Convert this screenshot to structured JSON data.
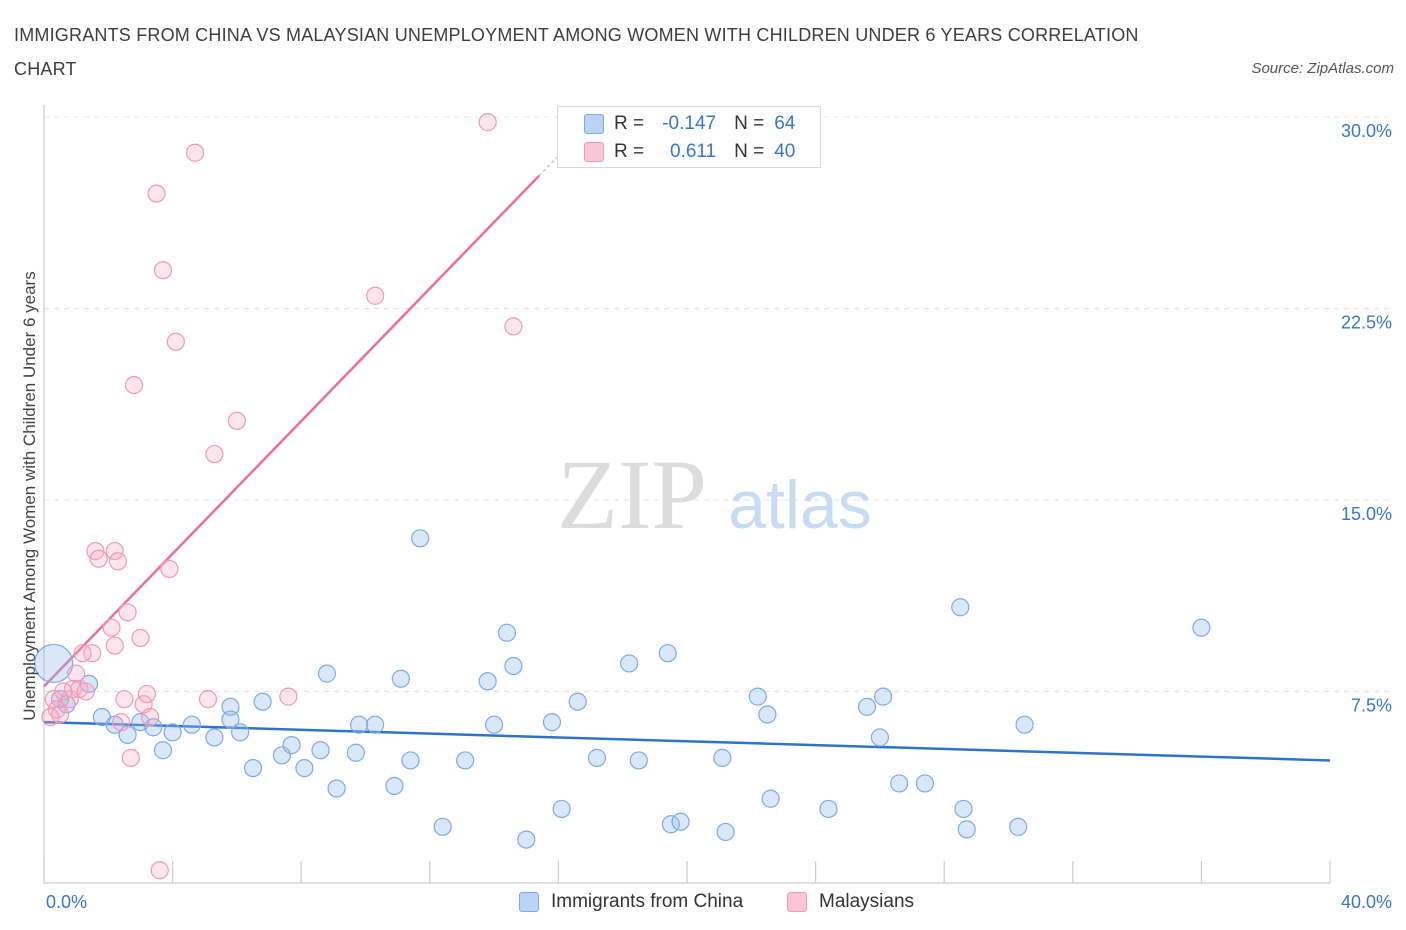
{
  "title": "IMMIGRANTS FROM CHINA VS MALAYSIAN UNEMPLOYMENT AMONG WOMEN WITH CHILDREN UNDER 6 YEARS CORRELATION CHART",
  "source": "Source: ZipAtlas.com",
  "watermark": {
    "zip": "ZIP",
    "atlas": "atlas"
  },
  "legend": {
    "china": {
      "r_label": "R =",
      "r_value": "-0.147",
      "n_label": "N =",
      "n_value": "64"
    },
    "malaysians": {
      "r_label": "R =",
      "r_value": "0.611",
      "n_label": "N =",
      "n_value": "40"
    }
  },
  "colors": {
    "china": "#6fa0e0",
    "china_line": "#2f74c9",
    "malaysians": "#ef8fae",
    "malaysians_line": "#e8709a",
    "axis_text": "#3b76c4"
  },
  "chart_data": {
    "type": "scatter",
    "xlabel": "",
    "ylabel": "Unemployment Among Women with Children Under 6 years",
    "xlim": [
      0,
      40
    ],
    "ylim": [
      0,
      30
    ],
    "x_tick_labels": [
      "0.0%",
      "40.0%"
    ],
    "y_ticks": [
      7.5,
      15.0,
      22.5,
      30.0
    ],
    "y_tick_labels": [
      "7.5%",
      "15.0%",
      "22.5%",
      "30.0%"
    ],
    "grid": true,
    "legend_position": "bottom-center",
    "series": [
      {
        "name": "Immigrants from China",
        "color": "#6fa0e0",
        "trend": {
          "x": [
            0,
            40
          ],
          "y": [
            6.3,
            4.8
          ]
        },
        "points": [
          [
            0.3,
            8.6
          ],
          [
            0.5,
            7.2
          ],
          [
            0.7,
            7.0
          ],
          [
            1.4,
            7.8
          ],
          [
            1.8,
            6.5
          ],
          [
            2.2,
            6.2
          ],
          [
            2.6,
            5.8
          ],
          [
            3.0,
            6.3
          ],
          [
            3.4,
            6.1
          ],
          [
            3.7,
            5.2
          ],
          [
            4.0,
            5.9
          ],
          [
            4.6,
            6.2
          ],
          [
            5.3,
            5.7
          ],
          [
            5.8,
            6.9
          ],
          [
            5.8,
            6.4
          ],
          [
            6.1,
            5.9
          ],
          [
            6.5,
            4.5
          ],
          [
            6.8,
            7.1
          ],
          [
            7.4,
            5.0
          ],
          [
            7.7,
            5.4
          ],
          [
            8.1,
            4.5
          ],
          [
            8.6,
            5.2
          ],
          [
            8.8,
            8.2
          ],
          [
            9.1,
            3.7
          ],
          [
            9.7,
            5.1
          ],
          [
            9.8,
            6.2
          ],
          [
            10.3,
            6.2
          ],
          [
            10.9,
            3.8
          ],
          [
            11.1,
            8.0
          ],
          [
            11.4,
            4.8
          ],
          [
            11.7,
            13.5
          ],
          [
            12.4,
            2.2
          ],
          [
            13.1,
            4.8
          ],
          [
            13.8,
            7.9
          ],
          [
            14.0,
            6.2
          ],
          [
            14.4,
            9.8
          ],
          [
            14.6,
            8.5
          ],
          [
            15.0,
            1.7
          ],
          [
            15.8,
            6.3
          ],
          [
            16.1,
            2.9
          ],
          [
            16.6,
            7.1
          ],
          [
            17.2,
            4.9
          ],
          [
            18.2,
            8.6
          ],
          [
            18.5,
            4.8
          ],
          [
            19.4,
            9.0
          ],
          [
            19.5,
            2.3
          ],
          [
            19.8,
            2.4
          ],
          [
            21.1,
            4.9
          ],
          [
            21.2,
            2.0
          ],
          [
            22.2,
            7.3
          ],
          [
            22.5,
            6.6
          ],
          [
            22.6,
            3.3
          ],
          [
            24.4,
            2.9
          ],
          [
            25.6,
            6.9
          ],
          [
            26.0,
            5.7
          ],
          [
            26.1,
            7.3
          ],
          [
            26.6,
            3.9
          ],
          [
            27.4,
            3.9
          ],
          [
            28.5,
            10.8
          ],
          [
            28.6,
            2.9
          ],
          [
            28.7,
            2.1
          ],
          [
            30.3,
            2.2
          ],
          [
            30.5,
            6.2
          ],
          [
            36.0,
            10.0
          ]
        ]
      },
      {
        "name": "Malaysians",
        "color": "#ef8fae",
        "trend": {
          "x": [
            0,
            15.4
          ],
          "y": [
            7.7,
            27.7
          ]
        },
        "points": [
          [
            0.3,
            7.2
          ],
          [
            0.4,
            6.8
          ],
          [
            0.5,
            6.6
          ],
          [
            0.8,
            7.2
          ],
          [
            0.9,
            7.6
          ],
          [
            1.0,
            8.2
          ],
          [
            1.1,
            7.6
          ],
          [
            1.3,
            7.5
          ],
          [
            1.5,
            9.0
          ],
          [
            1.6,
            13.0
          ],
          [
            1.7,
            12.7
          ],
          [
            2.1,
            10.0
          ],
          [
            2.2,
            9.3
          ],
          [
            2.2,
            13.0
          ],
          [
            2.3,
            12.6
          ],
          [
            2.4,
            6.3
          ],
          [
            2.5,
            7.2
          ],
          [
            2.6,
            10.6
          ],
          [
            2.7,
            4.9
          ],
          [
            2.8,
            19.5
          ],
          [
            3.0,
            9.6
          ],
          [
            3.1,
            7.0
          ],
          [
            3.2,
            7.4
          ],
          [
            3.3,
            6.5
          ],
          [
            3.5,
            27.0
          ],
          [
            3.6,
            0.5
          ],
          [
            3.7,
            24.0
          ],
          [
            3.9,
            12.3
          ],
          [
            4.1,
            21.2
          ],
          [
            4.7,
            28.6
          ],
          [
            5.1,
            7.2
          ],
          [
            5.3,
            16.8
          ],
          [
            6.0,
            18.1
          ],
          [
            7.6,
            7.3
          ],
          [
            10.3,
            23.0
          ],
          [
            13.8,
            29.8
          ],
          [
            14.6,
            21.8
          ],
          [
            0.6,
            7.5
          ],
          [
            1.2,
            9.0
          ],
          [
            0.2,
            6.5
          ]
        ]
      }
    ]
  }
}
